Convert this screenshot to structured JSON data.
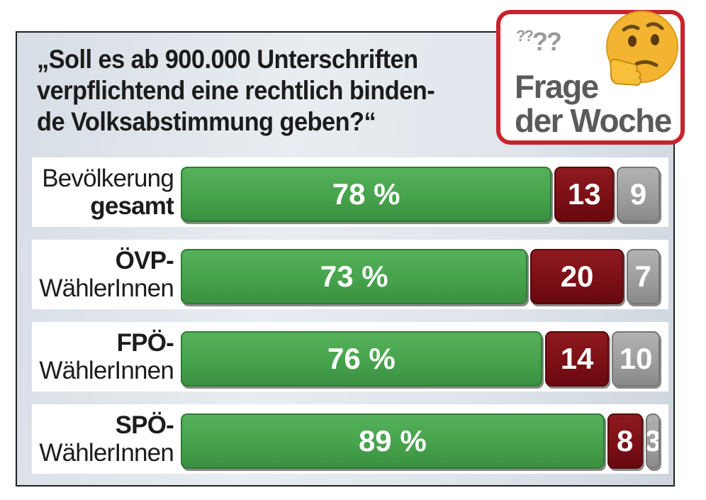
{
  "question": [
    "„Soll es ab 900.000 Unterschriften",
    "verpflichtend eine rechtlich binden-",
    "de Volksabstimmung geben?“"
  ],
  "badge": {
    "title_line1": "Frage",
    "title_line2": "der Woche",
    "icon": "thinking-face-icon"
  },
  "colors": {
    "yes": "#46a34c",
    "no": "#7a0f15",
    "undecided": "#9c9c9c",
    "badge_border": "#c8232c"
  },
  "chart_data": {
    "type": "bar",
    "orientation": "horizontal",
    "stacked": true,
    "unit": "%",
    "categories": [
      {
        "line1": "Bevölkerung",
        "line2": "gesamt",
        "bold_line": 2
      },
      {
        "line1": "ÖVP-",
        "line2": "WählerInnen",
        "bold_line": 1
      },
      {
        "line1": "FPÖ-",
        "line2": "WählerInnen",
        "bold_line": 1
      },
      {
        "line1": "SPÖ-",
        "line2": "WählerInnen",
        "bold_line": 1
      }
    ],
    "series": [
      {
        "values": [
          78,
          73,
          76,
          89
        ],
        "labels": [
          "78 %",
          "73 %",
          "76 %",
          "89 %"
        ]
      },
      {
        "values": [
          13,
          20,
          14,
          8
        ],
        "labels": [
          "13",
          "20",
          "14",
          "8"
        ]
      },
      {
        "values": [
          9,
          7,
          10,
          3
        ],
        "labels": [
          "9",
          "7",
          "10",
          "3"
        ]
      }
    ],
    "xlim": [
      0,
      100
    ]
  }
}
